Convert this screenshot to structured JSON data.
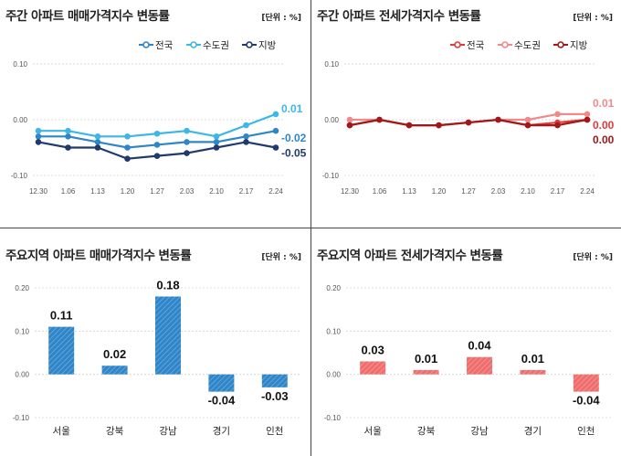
{
  "chart_data": [
    {
      "type": "line",
      "title": "주간 아파트 매매가격지수 변동률",
      "unit": "[단위 : %]",
      "categories": [
        "12.30",
        "1.06",
        "1.13",
        "1.20",
        "1.27",
        "2.03",
        "2.10",
        "2.17",
        "2.24"
      ],
      "ylim": [
        -0.1,
        0.1
      ],
      "yticks": [
        "0.10",
        "0.00",
        "-0.10"
      ],
      "series": [
        {
          "name": "전국",
          "color": "#2e86c9",
          "values": [
            -0.03,
            -0.03,
            -0.04,
            -0.05,
            -0.045,
            -0.04,
            -0.04,
            -0.03,
            -0.02
          ],
          "end_label": "-0.02"
        },
        {
          "name": "수도권",
          "color": "#3eb6e6",
          "values": [
            -0.02,
            -0.02,
            -0.03,
            -0.03,
            -0.025,
            -0.02,
            -0.03,
            -0.01,
            0.01
          ],
          "end_label": "0.01"
        },
        {
          "name": "지방",
          "color": "#1f3a6b",
          "values": [
            -0.04,
            -0.05,
            -0.05,
            -0.07,
            -0.065,
            -0.06,
            -0.05,
            -0.04,
            -0.05
          ],
          "end_label": "-0.05"
        }
      ]
    },
    {
      "type": "line",
      "title": "주간 아파트 전세가격지수 변동률",
      "unit": "[단위 : %]",
      "categories": [
        "12.30",
        "1.06",
        "1.13",
        "1.20",
        "1.27",
        "2.03",
        "2.10",
        "2.17",
        "2.24"
      ],
      "ylim": [
        -0.1,
        0.1
      ],
      "yticks": [
        "0.10",
        "0.00",
        "-0.10"
      ],
      "series": [
        {
          "name": "전국",
          "color": "#e03a3a",
          "values": [
            -0.01,
            0.0,
            -0.01,
            -0.01,
            -0.005,
            0.0,
            -0.01,
            -0.005,
            0.0
          ],
          "end_label": "0.00"
        },
        {
          "name": "수도권",
          "color": "#f08a8a",
          "values": [
            0.0,
            0.0,
            -0.01,
            -0.01,
            -0.005,
            0.0,
            0.0,
            0.01,
            0.01
          ],
          "end_label": "0.01"
        },
        {
          "name": "지방",
          "color": "#a01818",
          "values": [
            -0.01,
            0.0,
            -0.01,
            -0.01,
            -0.005,
            0.0,
            -0.01,
            -0.01,
            0.0
          ],
          "end_label": "0.00"
        }
      ]
    },
    {
      "type": "bar",
      "title": "주요지역 아파트 매매가격지수 변동률",
      "unit": "[단위 : %]",
      "categories": [
        "서울",
        "강북",
        "강남",
        "경기",
        "인천"
      ],
      "values": [
        0.11,
        0.02,
        0.18,
        -0.04,
        -0.03
      ],
      "labels": [
        "0.11",
        "0.02",
        "0.18",
        "-0.04",
        "-0.03"
      ],
      "color": "#2e86c9",
      "ylim": [
        -0.1,
        0.2
      ],
      "yticks": [
        "0.20",
        "0.10",
        "0.00",
        "-0.10"
      ]
    },
    {
      "type": "bar",
      "title": "주요지역 아파트 전세가격지수 변동률",
      "unit": "[단위 : %]",
      "categories": [
        "서울",
        "강북",
        "강남",
        "경기",
        "인천"
      ],
      "values": [
        0.03,
        0.01,
        0.04,
        0.01,
        -0.04
      ],
      "labels": [
        "0.03",
        "0.01",
        "0.04",
        "0.01",
        "-0.04"
      ],
      "color": "#ef6d6d",
      "ylim": [
        -0.1,
        0.2
      ],
      "yticks": [
        "0.20",
        "0.10",
        "0.00",
        "-0.10"
      ]
    }
  ]
}
